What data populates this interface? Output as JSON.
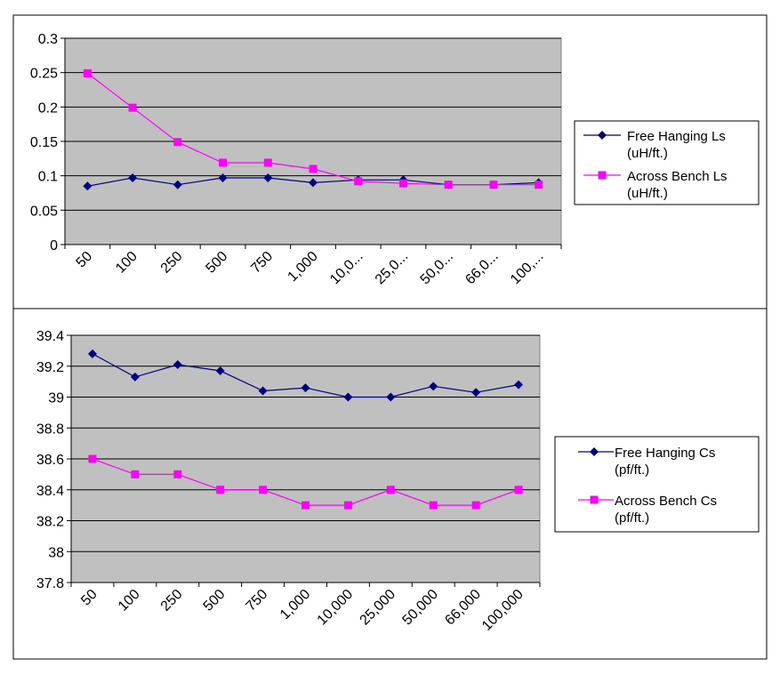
{
  "charts": [
    {
      "type": "line",
      "categories": [
        "50",
        "100",
        "250",
        "500",
        "750",
        "1,000",
        "10,0...",
        "25,0...",
        "50,0...",
        "66,0...",
        "100,..."
      ],
      "y_ticks": [
        "0",
        "0.05",
        "0.1",
        "0.15",
        "0.2",
        "0.25",
        "0.3"
      ],
      "ylim": [
        0,
        0.3
      ],
      "plot_background": "#C0C0C0",
      "grid": true,
      "legend_position": "right",
      "series": [
        {
          "name_lines": [
            "Free Hanging Ls",
            "(uH/ft.)"
          ],
          "color": "#000080",
          "marker": "diamond",
          "values": [
            0.085,
            0.097,
            0.087,
            0.097,
            0.097,
            0.09,
            0.094,
            0.094,
            0.087,
            0.087,
            0.09
          ]
        },
        {
          "name_lines": [
            "Across Bench Ls",
            "(uH/ft.)"
          ],
          "color": "#FF00FF",
          "marker": "square",
          "values": [
            0.249,
            0.199,
            0.149,
            0.119,
            0.119,
            0.11,
            0.092,
            0.089,
            0.087,
            0.087,
            0.087
          ]
        }
      ]
    },
    {
      "type": "line",
      "categories": [
        "50",
        "100",
        "250",
        "500",
        "750",
        "1,000",
        "10,000",
        "25,000",
        "50,000",
        "66,000",
        "100,000"
      ],
      "y_ticks": [
        "37.8",
        "38",
        "38.2",
        "38.4",
        "38.6",
        "38.8",
        "39",
        "39.2",
        "39.4"
      ],
      "ylim": [
        37.8,
        39.4
      ],
      "plot_background": "#C0C0C0",
      "grid": true,
      "legend_position": "right",
      "series": [
        {
          "name_lines": [
            "Free Hanging Cs",
            "(pf/ft.)"
          ],
          "color": "#000080",
          "marker": "diamond",
          "values": [
            39.28,
            39.13,
            39.21,
            39.17,
            39.04,
            39.06,
            39.0,
            39.0,
            39.07,
            39.03,
            39.08
          ]
        },
        {
          "name_lines": [
            "Across Bench Cs",
            "(pf/ft.)"
          ],
          "color": "#FF00FF",
          "marker": "square",
          "values": [
            38.6,
            38.5,
            38.5,
            38.4,
            38.4,
            38.3,
            38.3,
            38.4,
            38.3,
            38.3,
            38.4
          ]
        }
      ]
    }
  ]
}
